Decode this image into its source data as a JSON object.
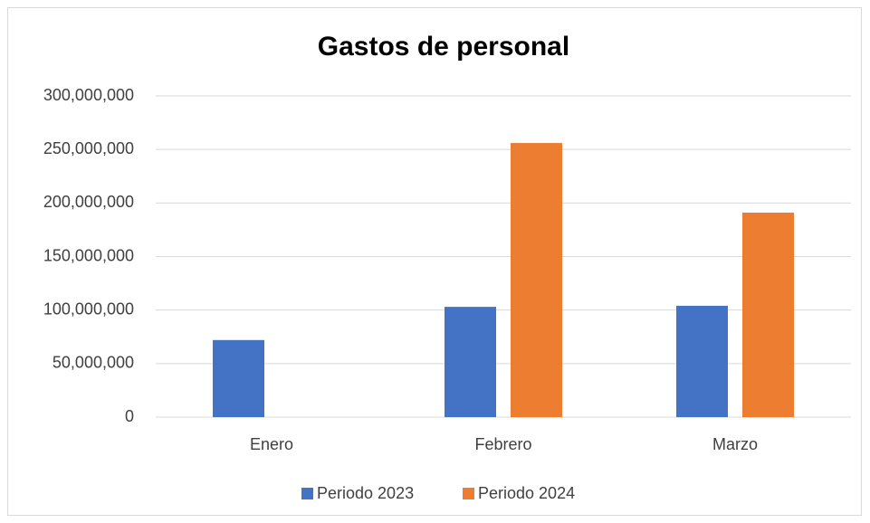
{
  "chart_data": {
    "type": "bar",
    "title": "Gastos de personal",
    "categories": [
      "Enero",
      "Febrero",
      "Marzo"
    ],
    "series": [
      {
        "name": "Periodo 2023",
        "color": "#4472c4",
        "values": [
          72000000,
          103000000,
          104000000
        ]
      },
      {
        "name": "Periodo 2024",
        "color": "#ed7d31",
        "values": [
          null,
          256000000,
          191000000
        ]
      }
    ],
    "ylim": [
      0,
      300000000
    ],
    "yticks": [
      0,
      {
        "value": 50000000,
        "label": "50,000,000"
      },
      {
        "value": 100000000,
        "label": "100,000,000"
      },
      {
        "value": 150000000,
        "label": "150,000,000"
      },
      {
        "value": 200000000,
        "label": "200,000,000"
      },
      {
        "value": 250000000,
        "label": "250,000,000"
      },
      {
        "value": 300000000,
        "label": "300,000,000"
      }
    ],
    "grid": true,
    "legend": "bottom"
  }
}
